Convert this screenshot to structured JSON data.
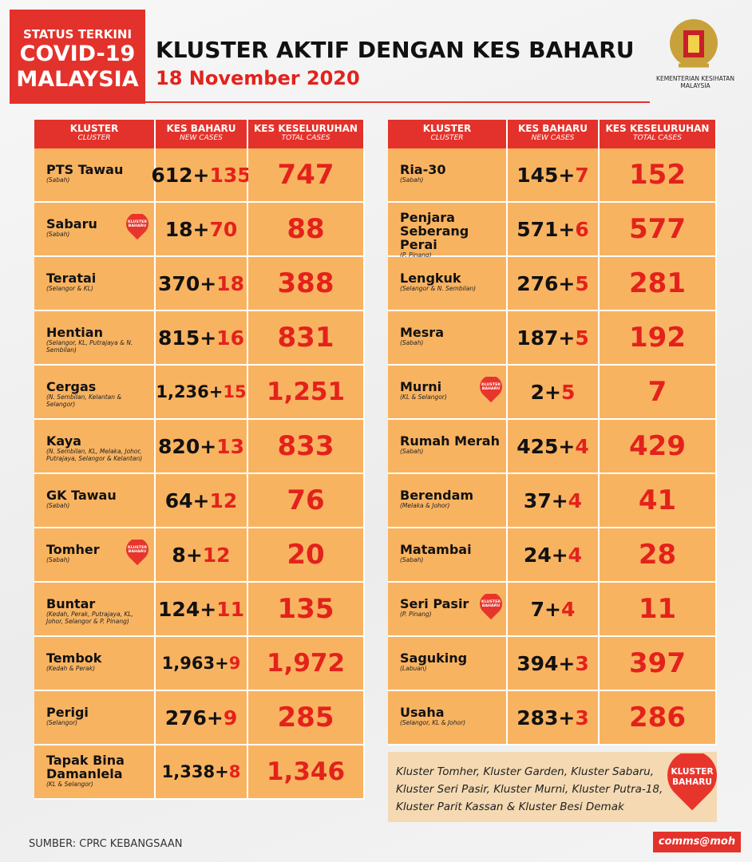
{
  "header": {
    "status_lines": [
      "STATUS TERKINI",
      "COVID-19",
      "MALAYSIA"
    ],
    "title": "KLUSTER AKTIF DENGAN KES BAHARU",
    "date": "18 November 2020",
    "ministry": [
      "KEMENTERIAN KESIHATAN",
      "MALAYSIA"
    ]
  },
  "columns": [
    {
      "label": "KLUSTER",
      "sub": "CLUSTER"
    },
    {
      "label": "KES BAHARU",
      "sub": "NEW CASES"
    },
    {
      "label": "KES KESELURUHAN",
      "sub": "TOTAL CASES"
    }
  ],
  "plus": "+",
  "badge": [
    "KLUSTER",
    "BAHARU"
  ],
  "tables": [
    {
      "rows": [
        {
          "name": "PTS Tawau",
          "state": "(Sabah)",
          "base": "612",
          "added": "135",
          "total": "747",
          "badge": false
        },
        {
          "name": "Sabaru",
          "state": "(Sabah)",
          "base": "18",
          "added": "70",
          "total": "88",
          "badge": true
        },
        {
          "name": "Teratai",
          "state": "(Selangor & KL)",
          "base": "370",
          "added": "18",
          "total": "388",
          "badge": false
        },
        {
          "name": "Hentian",
          "state": "(Selangor, KL, Putrajaya & N. Sembilan)",
          "base": "815",
          "added": "16",
          "total": "831",
          "badge": false
        },
        {
          "name": "Cergas",
          "state": "(N. Sembilan, Kelantan & Selangor)",
          "base": "1,236",
          "added": "15",
          "total": "1,251",
          "badge": false
        },
        {
          "name": "Kaya",
          "state": "(N. Sembilan, KL, Melaka, Johor, Putrajaya, Selangor & Kelantan)",
          "base": "820",
          "added": "13",
          "total": "833",
          "badge": false
        },
        {
          "name": "GK Tawau",
          "state": "(Sabah)",
          "base": "64",
          "added": "12",
          "total": "76",
          "badge": false
        },
        {
          "name": "Tomher",
          "state": "(Sabah)",
          "base": "8",
          "added": "12",
          "total": "20",
          "badge": true
        },
        {
          "name": "Buntar",
          "state": "(Kedah, Perak, Putrajaya, KL, Johor, Selangor & P. Pinang)",
          "base": "124",
          "added": "11",
          "total": "135",
          "badge": false
        },
        {
          "name": "Tembok",
          "state": "(Kedah & Perak)",
          "base": "1,963",
          "added": "9",
          "total": "1,972",
          "badge": false
        },
        {
          "name": "Perigi",
          "state": "(Selangor)",
          "base": "276",
          "added": "9",
          "total": "285",
          "badge": false
        },
        {
          "name": "Tapak Bina Damanlela",
          "state": "(KL & Selangor)",
          "base": "1,338",
          "added": "8",
          "total": "1,346",
          "badge": false
        }
      ]
    },
    {
      "rows": [
        {
          "name": "Ria-30",
          "state": "(Sabah)",
          "base": "145",
          "added": "7",
          "total": "152",
          "badge": false
        },
        {
          "name": "Penjara Seberang Perai",
          "state": "(P. Pinang)",
          "base": "571",
          "added": "6",
          "total": "577",
          "badge": false
        },
        {
          "name": "Lengkuk",
          "state": "(Selangor & N. Sembilan)",
          "base": "276",
          "added": "5",
          "total": "281",
          "badge": false
        },
        {
          "name": "Mesra",
          "state": "(Sabah)",
          "base": "187",
          "added": "5",
          "total": "192",
          "badge": false
        },
        {
          "name": "Murni",
          "state": "(KL & Selangor)",
          "base": "2",
          "added": "5",
          "total": "7",
          "badge": true
        },
        {
          "name": "Rumah Merah",
          "state": "(Sabah)",
          "base": "425",
          "added": "4",
          "total": "429",
          "badge": false
        },
        {
          "name": "Berendam",
          "state": "(Melaka & Johor)",
          "base": "37",
          "added": "4",
          "total": "41",
          "badge": false
        },
        {
          "name": "Matambai",
          "state": "(Sabah)",
          "base": "24",
          "added": "4",
          "total": "28",
          "badge": false
        },
        {
          "name": "Seri Pasir",
          "state": "(P. Pinang)",
          "base": "7",
          "added": "4",
          "total": "11",
          "badge": true
        },
        {
          "name": "Saguking",
          "state": "(Labuan)",
          "base": "394",
          "added": "3",
          "total": "397",
          "badge": false
        },
        {
          "name": "Usaha",
          "state": "(Selangor, KL & Johor)",
          "base": "283",
          "added": "3",
          "total": "286",
          "badge": false
        }
      ]
    }
  ],
  "note": "Kluster Tomher, Kluster Garden, Kluster Sabaru, Kluster Seri Pasir, Kluster Murni, Kluster Putra-18, Kluster Parit Kassan & Kluster Besi Demak",
  "footer": {
    "source": "SUMBER: CPRC KEBANGSAAN",
    "credit": "comms@moh"
  }
}
